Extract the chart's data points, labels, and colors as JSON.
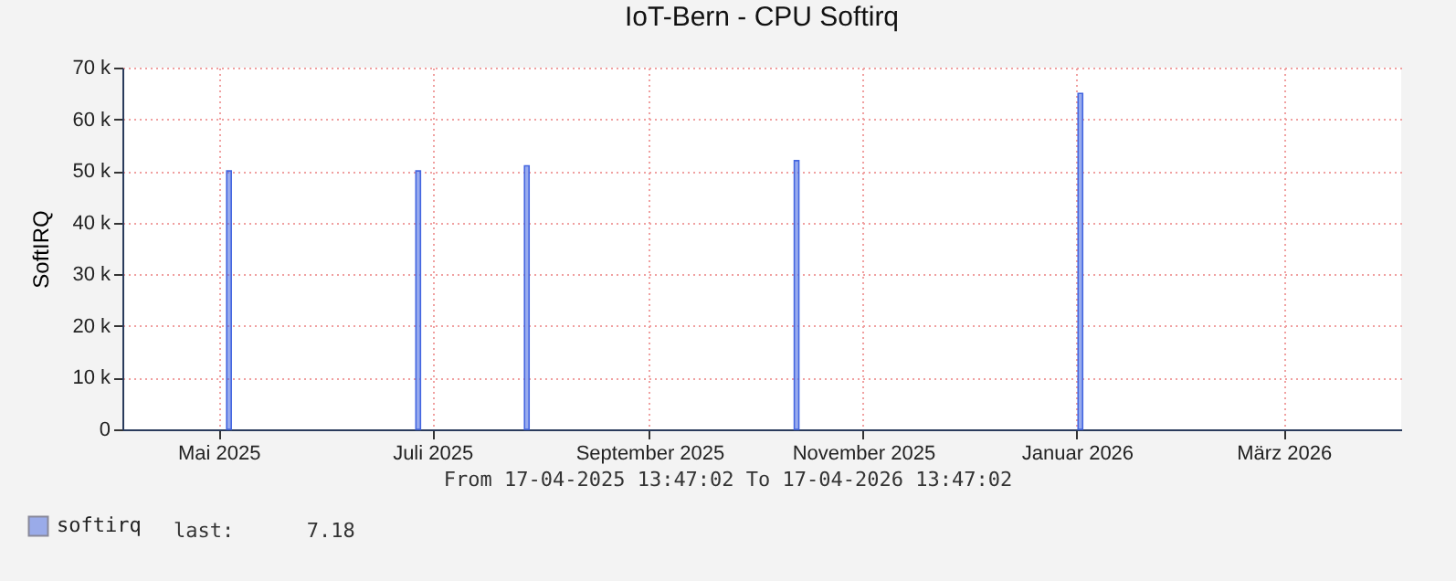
{
  "chart_data": {
    "type": "bar",
    "title": "IoT-Bern - CPU Softirq",
    "ylabel": "SoftIRQ",
    "annotations": [
      "From 17-04-2025 13:47:02 To 17-04-2026 13:47:02",
      "last:      7.18"
    ],
    "x": [
      "2025-05-18",
      "2025-07-11",
      "2025-08-11",
      "2025-10-27",
      "2026-01-16"
    ],
    "series": [
      {
        "name": "softirq",
        "color": "#4466e0",
        "values": [
          50000,
          50000,
          51000,
          52000,
          65000
        ]
      }
    ],
    "xlim": [
      "2025-04-17T13:47",
      "2026-04-17T13:47"
    ],
    "xticks": [
      {
        "value": "2025-05-15",
        "label": "Mai 2025"
      },
      {
        "value": "2025-07-15",
        "label": "Juli 2025"
      },
      {
        "value": "2025-09-15",
        "label": "September 2025"
      },
      {
        "value": "2025-11-15",
        "label": "November 2025"
      },
      {
        "value": "2026-01-15",
        "label": "Januar 2026"
      },
      {
        "value": "2026-03-15",
        "label": "März 2026"
      }
    ],
    "ylim": [
      0,
      70000
    ],
    "yticks": [
      0,
      {
        "value": 10000,
        "label": "10 k"
      },
      {
        "value": 20000,
        "label": "20 k"
      },
      {
        "value": 30000,
        "label": "30 k"
      },
      {
        "value": 40000,
        "label": "40 k"
      },
      {
        "value": 50000,
        "label": "50 k"
      },
      {
        "value": 60000,
        "label": "60 k"
      },
      {
        "value": 70000,
        "label": "70 k"
      }
    ],
    "grid": true,
    "legend": "bottom left"
  }
}
